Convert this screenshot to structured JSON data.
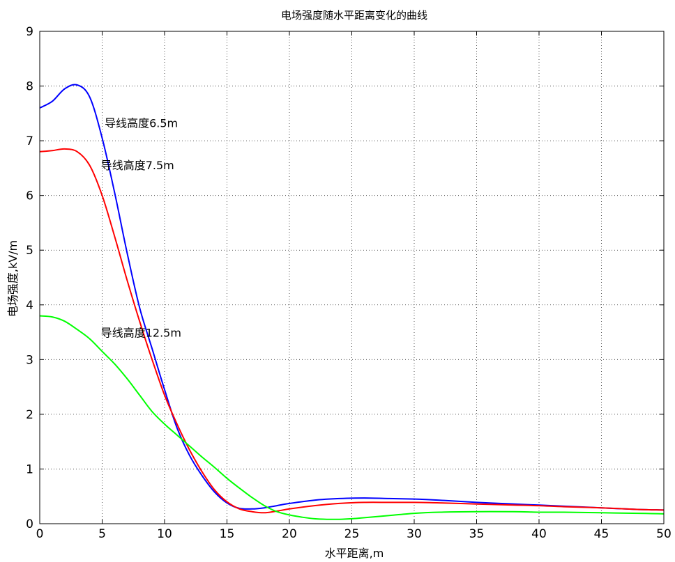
{
  "chart_data": {
    "type": "line",
    "title": "电场强度随水平距离变化的曲线",
    "xlabel": "水平距离,m",
    "ylabel": "电场强度,kV/m",
    "xlim": [
      0,
      50
    ],
    "ylim": [
      0,
      9
    ],
    "xticks": [
      "0",
      "5",
      "10",
      "15",
      "20",
      "25",
      "30",
      "35",
      "40",
      "45",
      "50"
    ],
    "yticks": [
      "0",
      "1",
      "2",
      "3",
      "4",
      "5",
      "6",
      "7",
      "8",
      "9"
    ],
    "grid": true,
    "series": [
      {
        "name": "导线高度6.5m",
        "color": "#0000ff",
        "x": [
          0,
          1,
          2,
          3,
          4,
          5,
          6,
          7,
          8,
          9,
          10,
          11,
          12,
          13,
          14,
          15,
          16,
          17,
          18,
          19,
          20,
          22,
          24,
          26,
          28,
          30,
          32,
          35,
          38,
          40,
          42,
          45,
          48,
          50
        ],
        "y": [
          7.6,
          7.72,
          7.95,
          8.02,
          7.8,
          7.05,
          6.05,
          4.95,
          3.95,
          3.2,
          2.45,
          1.75,
          1.25,
          0.88,
          0.58,
          0.38,
          0.28,
          0.27,
          0.29,
          0.33,
          0.37,
          0.43,
          0.46,
          0.47,
          0.46,
          0.45,
          0.43,
          0.39,
          0.36,
          0.34,
          0.32,
          0.29,
          0.26,
          0.25
        ]
      },
      {
        "name": "导线高度7.5m",
        "color": "#ff0000",
        "x": [
          0,
          1,
          2,
          3,
          4,
          5,
          6,
          7,
          8,
          9,
          10,
          11,
          12,
          13,
          14,
          15,
          16,
          17,
          18,
          19,
          20,
          22,
          24,
          26,
          28,
          30,
          32,
          35,
          38,
          40,
          42,
          45,
          48,
          50
        ],
        "y": [
          6.8,
          6.82,
          6.85,
          6.8,
          6.55,
          6.0,
          5.25,
          4.45,
          3.7,
          3.0,
          2.35,
          1.82,
          1.35,
          0.95,
          0.62,
          0.4,
          0.27,
          0.22,
          0.2,
          0.23,
          0.27,
          0.33,
          0.37,
          0.39,
          0.39,
          0.39,
          0.38,
          0.36,
          0.34,
          0.33,
          0.31,
          0.29,
          0.26,
          0.25
        ]
      },
      {
        "name": "导线高度12.5m",
        "color": "#00ff00",
        "x": [
          0,
          1,
          2,
          3,
          4,
          5,
          6,
          7,
          8,
          9,
          10,
          11,
          12,
          13,
          14,
          15,
          16,
          17,
          18,
          19,
          20,
          21,
          22,
          23,
          24,
          25,
          26,
          28,
          30,
          32,
          35,
          38,
          40,
          42,
          45,
          48,
          50
        ],
        "y": [
          3.8,
          3.78,
          3.7,
          3.55,
          3.38,
          3.15,
          2.92,
          2.65,
          2.35,
          2.05,
          1.82,
          1.62,
          1.42,
          1.22,
          1.03,
          0.83,
          0.65,
          0.48,
          0.33,
          0.22,
          0.16,
          0.12,
          0.09,
          0.08,
          0.08,
          0.09,
          0.11,
          0.15,
          0.19,
          0.21,
          0.22,
          0.22,
          0.21,
          0.21,
          0.2,
          0.19,
          0.18
        ]
      }
    ],
    "annotations": [
      {
        "text": "导线高度6.5m",
        "x": 5.2,
        "y": 7.25
      },
      {
        "text": "导线高度7.5m",
        "x": 4.9,
        "y": 6.48
      },
      {
        "text": "导线高度12.5m",
        "x": 4.9,
        "y": 3.42
      }
    ]
  }
}
